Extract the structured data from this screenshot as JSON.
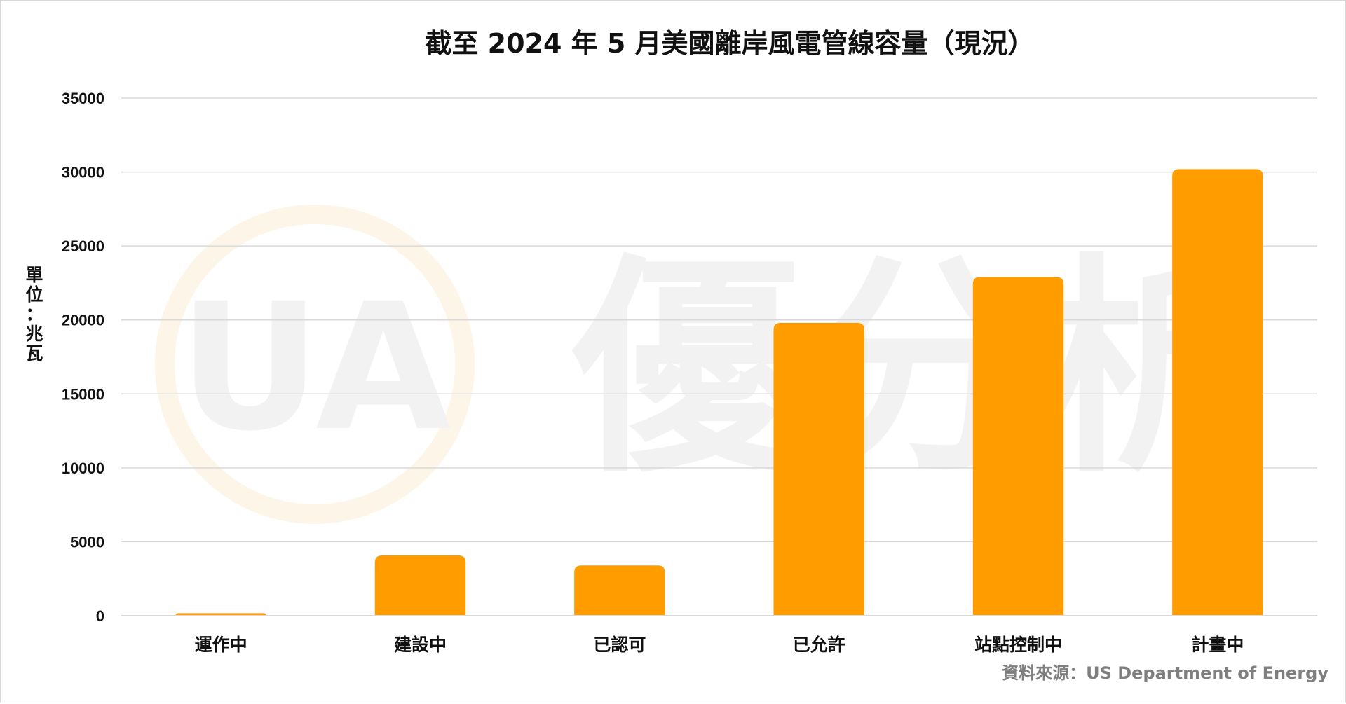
{
  "source": "資料來源：US Department of Energy",
  "watermark": {
    "logo_letters": "UA",
    "text": "優分析",
    "logo_ring_color": "#fdf6e8",
    "logo_letter_color": "#fbf0dc",
    "text_color": "#f1f1f1"
  },
  "colors": {
    "bar": "#ff9c00",
    "grid": "#d9d9d9",
    "text": "#111111",
    "source": "#7f7f7f"
  },
  "chart_data": {
    "type": "bar",
    "title": "截至 2024 年 5 月美國離岸風電管線容量（現況）",
    "ylabel": "單位：兆瓦",
    "xlabel": "",
    "categories": [
      "運作中",
      "建設中",
      "已認可",
      "已允許",
      "站點控制中",
      "計畫中"
    ],
    "values": [
      174,
      4075,
      3400,
      19800,
      22900,
      30200
    ],
    "ylim": [
      0,
      35000
    ],
    "yticks": [
      0,
      5000,
      10000,
      15000,
      20000,
      25000,
      30000,
      35000
    ],
    "grid": true,
    "legend": "none"
  }
}
